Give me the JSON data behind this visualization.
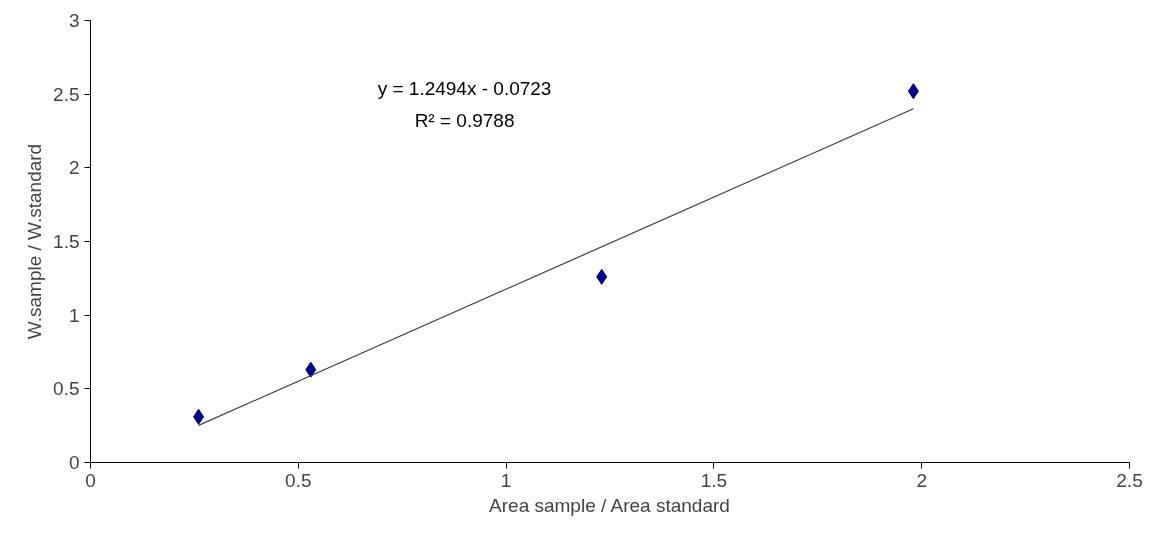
{
  "chart_data": {
    "type": "scatter",
    "xlabel": "Area sample / Area standard",
    "ylabel": "W.sample / W.standard",
    "annotations": [
      "y = 1.2494x - 0.0723",
      "R² = 0.9788"
    ],
    "series": [
      {
        "color": "#00008b",
        "x": [
          0.26,
          0.53,
          1.23,
          1.98
        ],
        "values": [
          0.31,
          0.63,
          1.26,
          2.52
        ],
        "marker": "diamond"
      },
      {
        "type": "line",
        "color": "#404040",
        "x": [
          0.26,
          1.98
        ],
        "values": [
          0.252,
          2.401
        ],
        "marker": "none"
      }
    ],
    "xlim": [
      0,
      2.5
    ],
    "xticks": [
      0,
      0.5,
      1,
      1.5,
      2,
      2.5
    ],
    "ylim": [
      0,
      3
    ],
    "yticks": [
      0,
      0.5,
      1,
      1.5,
      2,
      2.5,
      3
    ],
    "grid": false
  }
}
